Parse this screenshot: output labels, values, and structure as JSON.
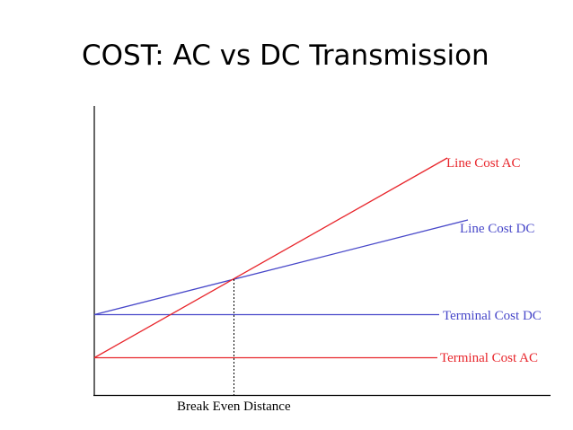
{
  "title": "COST: AC vs DC Transmission",
  "colors": {
    "ac": "#e8262c",
    "dc": "#4747c9",
    "axis": "#000000"
  },
  "labels": {
    "line_cost_ac": "Line Cost AC",
    "line_cost_dc": "Line Cost DC",
    "terminal_cost_dc": "Terminal Cost DC",
    "terminal_cost_ac": "Terminal Cost AC",
    "break_even": "Break Even Distance"
  }
}
